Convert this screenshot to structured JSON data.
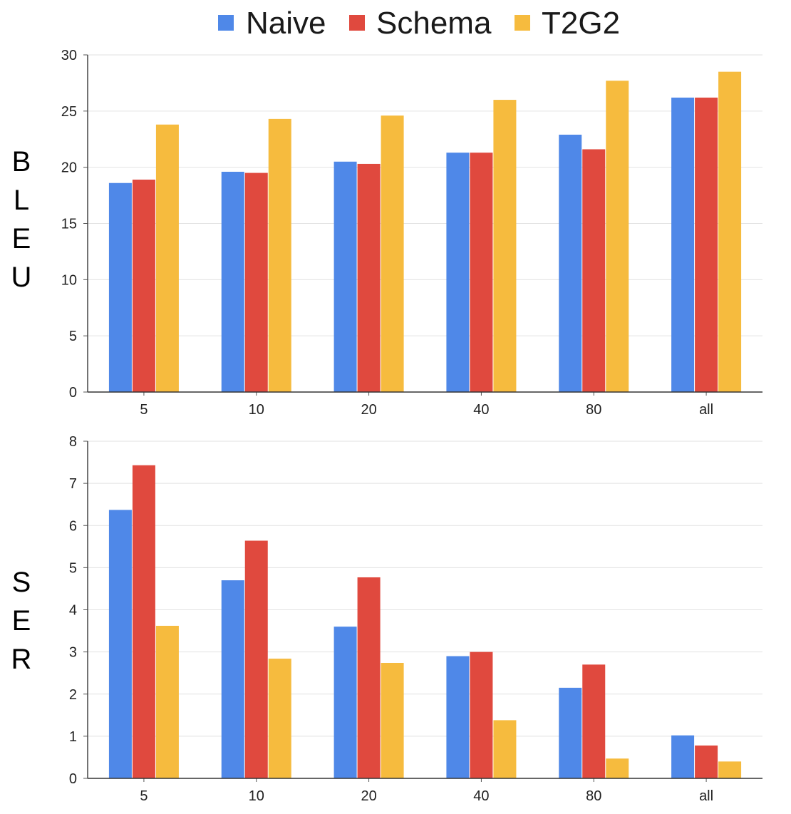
{
  "legend": [
    {
      "name": "Naive",
      "color": "#4f88e8"
    },
    {
      "name": "Schema",
      "color": "#e0493e"
    },
    {
      "name": "T2G2",
      "color": "#f6bb3e"
    }
  ],
  "chart_data": [
    {
      "type": "bar",
      "title": "",
      "xlabel": "",
      "ylabel": "BLEU",
      "categories": [
        "5",
        "10",
        "20",
        "40",
        "80",
        "all"
      ],
      "ylim": [
        0,
        30
      ],
      "yticks": [
        0,
        5,
        10,
        15,
        20,
        25,
        30
      ],
      "grid": true,
      "legend_position": "top-center",
      "series": [
        {
          "name": "Naive",
          "values": [
            18.6,
            19.6,
            20.5,
            21.3,
            22.9,
            26.2
          ]
        },
        {
          "name": "Schema",
          "values": [
            18.9,
            19.5,
            20.3,
            21.3,
            21.6,
            26.2
          ]
        },
        {
          "name": "T2G2",
          "values": [
            23.8,
            24.3,
            24.6,
            26.0,
            27.7,
            28.5
          ]
        }
      ]
    },
    {
      "type": "bar",
      "title": "",
      "xlabel": "",
      "ylabel": "SER",
      "categories": [
        "5",
        "10",
        "20",
        "40",
        "80",
        "all"
      ],
      "ylim": [
        0,
        8
      ],
      "yticks": [
        0,
        1,
        2,
        3,
        4,
        5,
        6,
        7,
        8
      ],
      "grid": true,
      "legend_position": "top-center",
      "series": [
        {
          "name": "Naive",
          "values": [
            6.37,
            4.7,
            3.6,
            2.9,
            2.15,
            1.02
          ]
        },
        {
          "name": "Schema",
          "values": [
            7.43,
            5.64,
            4.77,
            3.0,
            2.7,
            0.78
          ]
        },
        {
          "name": "T2G2",
          "values": [
            3.62,
            2.84,
            2.74,
            1.38,
            0.47,
            0.4
          ]
        }
      ]
    }
  ]
}
